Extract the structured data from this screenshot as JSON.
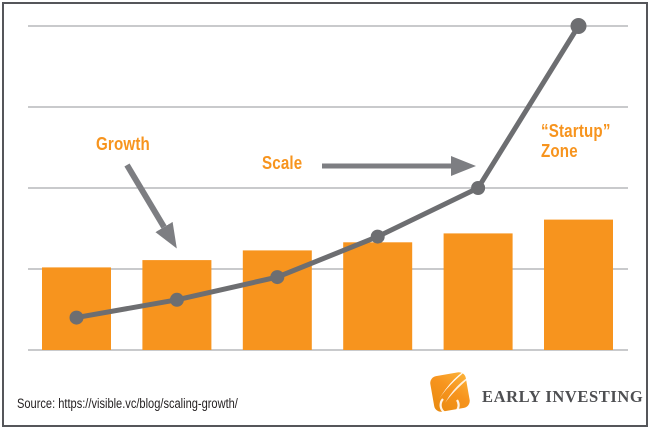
{
  "chart_data": {
    "type": "composite",
    "subtypes": [
      "bar",
      "line"
    ],
    "title": "",
    "xlabel": "",
    "ylabel": "",
    "categories": [
      "",
      "",
      "",
      "",
      "",
      ""
    ],
    "axis_tick_labels_visible": false,
    "ylim": [
      0,
      4.3
    ],
    "gridlines": {
      "horizontal_count": 5,
      "labels_visible": false
    },
    "series": [
      {
        "name": "growth-bars",
        "type": "bar",
        "values": [
          1.02,
          1.11,
          1.23,
          1.33,
          1.44,
          1.61
        ]
      },
      {
        "name": "scale-line",
        "type": "line",
        "values": [
          0.4,
          0.62,
          0.9,
          1.4,
          2.0,
          4.0
        ]
      }
    ],
    "colors": {
      "bar": "#F7941E",
      "line": "#6D6E71",
      "gridline": "#939598",
      "arrow": "#7D7E82"
    },
    "annotations": [
      {
        "text": "Growth",
        "points_to": "bars (arrow down-right onto second bar)"
      },
      {
        "text": "Scale",
        "points_to": "line (horizontal arrow pointing right at line bend)"
      },
      {
        "text": "“Startup” Zone",
        "points_to": "steep final line segment"
      }
    ]
  },
  "annotations": {
    "growth": "Growth",
    "scale": "Scale",
    "startup_line1": "“Startup”",
    "startup_line2": "Zone"
  },
  "footer": {
    "source": "Source: https://visible.vc/blog/scaling-growth/",
    "brand": "EARLY INVESTING"
  }
}
